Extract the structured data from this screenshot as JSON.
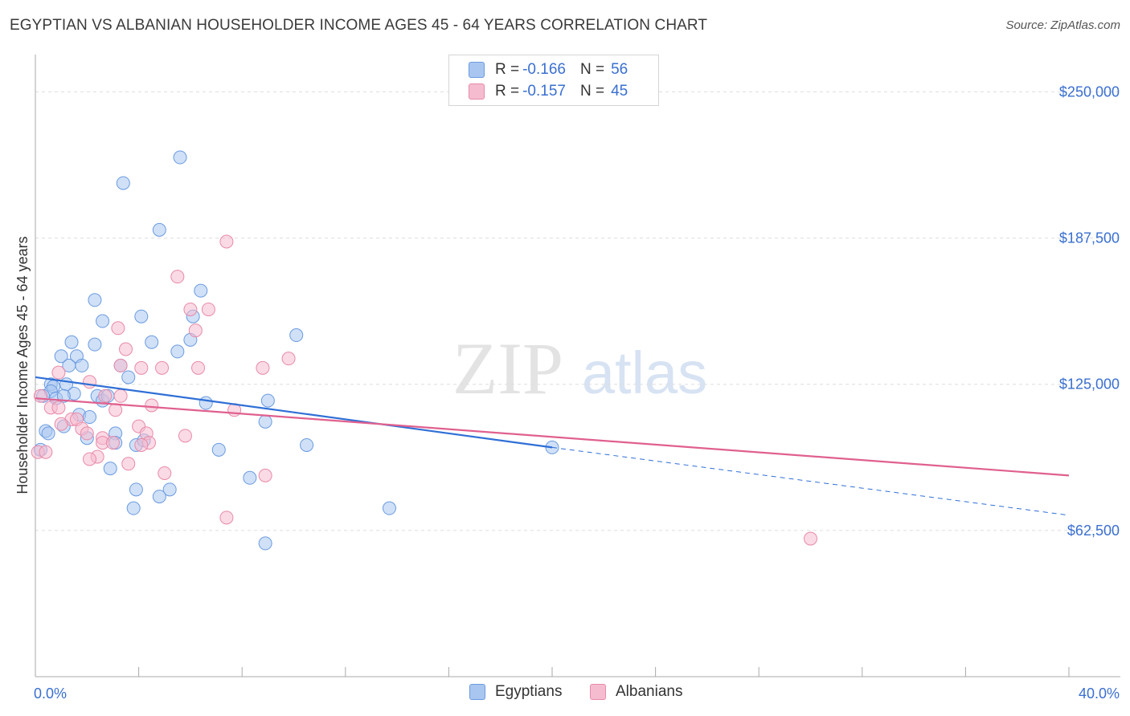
{
  "header": {
    "title": "EGYPTIAN VS ALBANIAN HOUSEHOLDER INCOME AGES 45 - 64 YEARS CORRELATION CHART",
    "source": "Source: ZipAtlas.com"
  },
  "watermark": {
    "zip": "ZIP",
    "atlas": "atlas"
  },
  "legend": {
    "rows": [
      {
        "r_label": "R =",
        "r_value": "-0.166",
        "n_label": "N =",
        "n_value": "56",
        "color": "#a9c6f0",
        "border": "#6a9be0"
      },
      {
        "r_label": "R =",
        "r_value": "-0.157",
        "n_label": "N =",
        "n_value": "45",
        "color": "#f5bcd0",
        "border": "#e88aa8"
      }
    ]
  },
  "bottom_legend": {
    "items": [
      {
        "label": "Egyptians"
      },
      {
        "label": "Albanians"
      }
    ]
  },
  "colors": {
    "egyptian_fill": "#a9c6f0",
    "egyptian_stroke": "#6a9be0",
    "egyptian_line": "#2f6fd6",
    "albanian_fill": "#f5bcd0",
    "albanian_stroke": "#e88aa8",
    "albanian_line": "#e0608e",
    "tick_text": "#3a6fd0",
    "grid": "#dddddd"
  },
  "chart_data": {
    "type": "scatter",
    "title": "EGYPTIAN VS ALBANIAN HOUSEHOLDER INCOME AGES 45 - 64 YEARS CORRELATION CHART",
    "xlabel": "",
    "ylabel": "Householder Income Ages 45 - 64 years",
    "xlim": [
      0,
      40
    ],
    "ylim": [
      0,
      262500
    ],
    "x_unit": "%",
    "x_tick_labels": [
      "0.0%",
      "40.0%"
    ],
    "y_ticks": [
      62500,
      125000,
      187500,
      250000
    ],
    "y_tick_labels": [
      "$62,500",
      "$125,000",
      "$187,500",
      "$250,000"
    ],
    "grid": true,
    "legend_position": "top-center",
    "series": [
      {
        "name": "Egyptians",
        "r": -0.166,
        "n": 56,
        "trend": {
          "x0": 0,
          "y0": 128000,
          "x1": 20,
          "y1": 98000,
          "dashed_to_x": 40,
          "dashed_to_y": 69000
        },
        "points": [
          [
            5.6,
            222000
          ],
          [
            3.4,
            211000
          ],
          [
            4.8,
            191000
          ],
          [
            6.4,
            165000
          ],
          [
            2.3,
            161000
          ],
          [
            4.1,
            154000
          ],
          [
            2.6,
            152000
          ],
          [
            6.1,
            154000
          ],
          [
            10.1,
            146000
          ],
          [
            1.4,
            143000
          ],
          [
            2.3,
            142000
          ],
          [
            4.5,
            143000
          ],
          [
            5.5,
            139000
          ],
          [
            6.0,
            144000
          ],
          [
            1.0,
            137000
          ],
          [
            1.6,
            137000
          ],
          [
            1.3,
            133000
          ],
          [
            1.8,
            133000
          ],
          [
            3.3,
            133000
          ],
          [
            3.6,
            128000
          ],
          [
            0.6,
            125000
          ],
          [
            0.7,
            124000
          ],
          [
            1.2,
            125000
          ],
          [
            0.6,
            122000
          ],
          [
            1.5,
            121000
          ],
          [
            2.4,
            120000
          ],
          [
            2.6,
            118000
          ],
          [
            2.8,
            120000
          ],
          [
            0.3,
            120000
          ],
          [
            0.8,
            119000
          ],
          [
            6.6,
            117000
          ],
          [
            9.0,
            118000
          ],
          [
            1.7,
            112000
          ],
          [
            2.1,
            111000
          ],
          [
            1.1,
            107000
          ],
          [
            8.9,
            109000
          ],
          [
            0.4,
            105000
          ],
          [
            3.1,
            104000
          ],
          [
            2.0,
            102000
          ],
          [
            3.1,
            100000
          ],
          [
            3.9,
            99000
          ],
          [
            4.2,
            101000
          ],
          [
            0.2,
            97000
          ],
          [
            7.1,
            97000
          ],
          [
            10.5,
            99000
          ],
          [
            20.0,
            98000
          ],
          [
            2.9,
            89000
          ],
          [
            8.3,
            85000
          ],
          [
            3.9,
            80000
          ],
          [
            5.2,
            80000
          ],
          [
            4.8,
            77000
          ],
          [
            3.8,
            72000
          ],
          [
            13.7,
            72000
          ],
          [
            8.9,
            57000
          ],
          [
            0.5,
            104000
          ],
          [
            1.1,
            120000
          ]
        ]
      },
      {
        "name": "Albanians",
        "r": -0.157,
        "n": 45,
        "trend": {
          "x0": 0,
          "y0": 119000,
          "x1": 40,
          "y1": 86000
        },
        "points": [
          [
            7.4,
            186000
          ],
          [
            5.5,
            171000
          ],
          [
            6.0,
            157000
          ],
          [
            6.7,
            157000
          ],
          [
            3.2,
            149000
          ],
          [
            6.2,
            148000
          ],
          [
            9.8,
            136000
          ],
          [
            3.5,
            140000
          ],
          [
            3.3,
            133000
          ],
          [
            4.1,
            132000
          ],
          [
            4.9,
            132000
          ],
          [
            6.3,
            132000
          ],
          [
            8.8,
            132000
          ],
          [
            0.9,
            130000
          ],
          [
            2.1,
            126000
          ],
          [
            0.2,
            120000
          ],
          [
            2.7,
            120000
          ],
          [
            0.6,
            115000
          ],
          [
            0.9,
            115000
          ],
          [
            3.1,
            114000
          ],
          [
            4.5,
            116000
          ],
          [
            7.7,
            114000
          ],
          [
            1.4,
            110000
          ],
          [
            1.6,
            110000
          ],
          [
            1.0,
            108000
          ],
          [
            1.8,
            106000
          ],
          [
            4.0,
            107000
          ],
          [
            2.0,
            104000
          ],
          [
            4.3,
            104000
          ],
          [
            5.8,
            103000
          ],
          [
            2.6,
            102000
          ],
          [
            2.6,
            100000
          ],
          [
            3.0,
            100000
          ],
          [
            4.4,
            100000
          ],
          [
            4.1,
            99000
          ],
          [
            0.1,
            96000
          ],
          [
            0.4,
            96000
          ],
          [
            2.4,
            94000
          ],
          [
            2.1,
            93000
          ],
          [
            3.6,
            91000
          ],
          [
            5.0,
            87000
          ],
          [
            8.9,
            86000
          ],
          [
            7.4,
            68000
          ],
          [
            30.0,
            59000
          ],
          [
            3.3,
            120000
          ]
        ]
      }
    ]
  }
}
